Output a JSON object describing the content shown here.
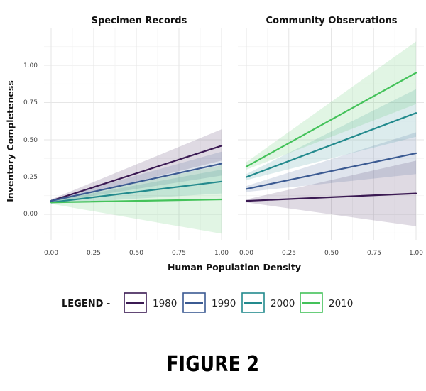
{
  "chart_data": {
    "type": "line",
    "xlabel": "Human Population Density",
    "ylabel": "Inventory Completeness",
    "xlim": [
      0,
      1
    ],
    "ylim": [
      -0.2,
      1.2
    ],
    "x_ticks": [
      "0.00",
      "0.25",
      "0.50",
      "0.75",
      "1.00"
    ],
    "y_ticks": [
      "0.00",
      "0.25",
      "0.50",
      "0.75",
      "1.00"
    ],
    "grid": true,
    "legend": {
      "title": "LEGEND -",
      "placement": "bottom",
      "entries": [
        "1980",
        "1990",
        "2000",
        "2010"
      ]
    },
    "colors": {
      "1980": "#3b1a53",
      "1990": "#3b5a92",
      "2000": "#238a8d",
      "2010": "#44c25a"
    },
    "panels": [
      {
        "title": "Specimen Records",
        "series": [
          {
            "name": "1980",
            "x": [
              0,
              1
            ],
            "y": [
              0.09,
              0.46
            ],
            "lower": [
              0.08,
              0.36
            ],
            "upper": [
              0.1,
              0.57
            ]
          },
          {
            "name": "1990",
            "x": [
              0,
              1
            ],
            "y": [
              0.09,
              0.34
            ],
            "lower": [
              0.08,
              0.26
            ],
            "upper": [
              0.1,
              0.42
            ]
          },
          {
            "name": "2000",
            "x": [
              0,
              1
            ],
            "y": [
              0.08,
              0.22
            ],
            "lower": [
              0.07,
              0.14
            ],
            "upper": [
              0.09,
              0.3
            ]
          },
          {
            "name": "2010",
            "x": [
              0,
              1
            ],
            "y": [
              0.08,
              0.1
            ],
            "lower": [
              0.07,
              -0.13
            ],
            "upper": [
              0.09,
              0.33
            ]
          }
        ]
      },
      {
        "title": "Community Observations",
        "series": [
          {
            "name": "1980",
            "x": [
              0,
              1
            ],
            "y": [
              0.09,
              0.14
            ],
            "lower": [
              0.08,
              -0.08
            ],
            "upper": [
              0.1,
              0.36
            ]
          },
          {
            "name": "1990",
            "x": [
              0,
              1
            ],
            "y": [
              0.17,
              0.41
            ],
            "lower": [
              0.15,
              0.27
            ],
            "upper": [
              0.19,
              0.55
            ]
          },
          {
            "name": "2000",
            "x": [
              0,
              1
            ],
            "y": [
              0.25,
              0.68
            ],
            "lower": [
              0.23,
              0.52
            ],
            "upper": [
              0.27,
              0.84
            ]
          },
          {
            "name": "2010",
            "x": [
              0,
              1
            ],
            "y": [
              0.32,
              0.95
            ],
            "lower": [
              0.3,
              0.74
            ],
            "upper": [
              0.35,
              1.16
            ]
          }
        ]
      }
    ]
  },
  "caption": "FIGURE 2"
}
